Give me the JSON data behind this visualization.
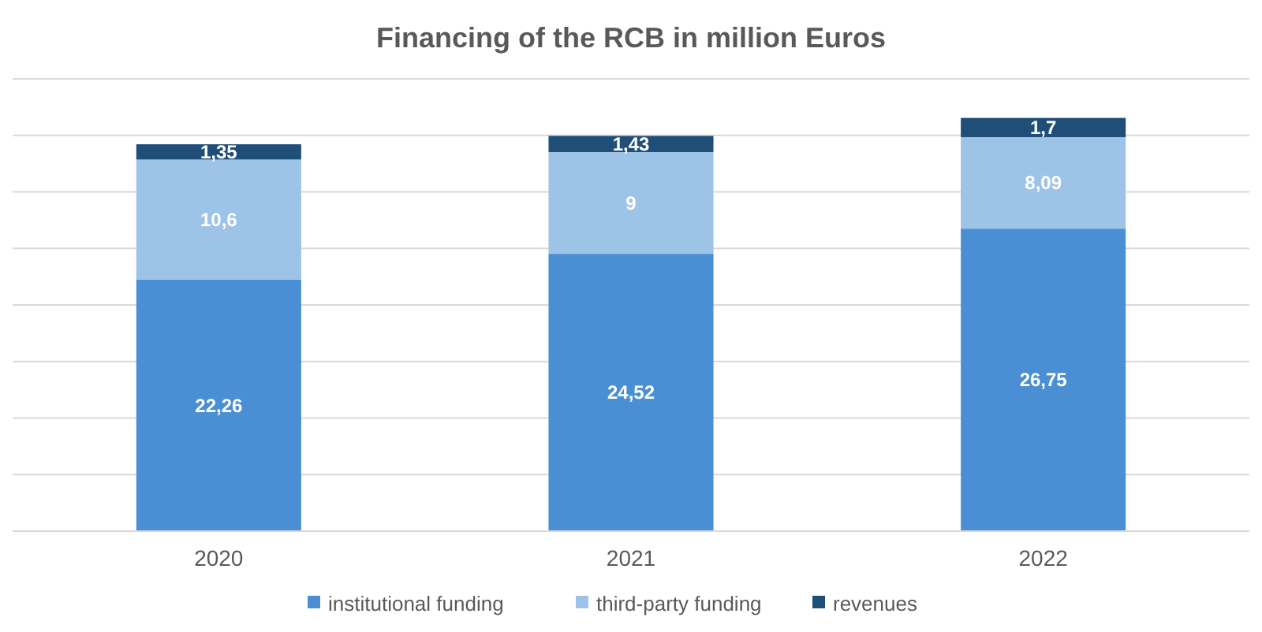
{
  "chart_data": {
    "type": "bar",
    "title": "Financing of the RCB in million Euros",
    "categories": [
      "2020",
      "2021",
      "2022"
    ],
    "stacked": true,
    "series": [
      {
        "name": "institutional funding",
        "color": "#4a8fd4",
        "values": [
          22.26,
          24.52,
          26.75
        ],
        "value_labels": [
          "22,26",
          "24,52",
          "26,75"
        ]
      },
      {
        "name": "third-party funding",
        "color": "#9dc3e6",
        "values": [
          10.6,
          9,
          8.09
        ],
        "value_labels": [
          "10,6",
          "9",
          "8,09"
        ]
      },
      {
        "name": "revenues",
        "color": "#1f4e79",
        "values": [
          1.35,
          1.43,
          1.7
        ],
        "value_labels": [
          "1,35",
          "1,43",
          "1,7"
        ]
      }
    ],
    "ylim": [
      0,
      40
    ],
    "yticks": [
      {
        "value": 0,
        "label": null
      },
      {
        "value": 5,
        "label": null
      },
      {
        "value": 10,
        "label": null
      },
      {
        "value": 15,
        "label": null
      },
      {
        "value": 20,
        "label": null
      },
      {
        "value": 25,
        "label": null
      },
      {
        "value": 30,
        "label": null
      },
      {
        "value": 35,
        "label": null
      },
      {
        "value": 40,
        "label": null
      }
    ],
    "tick_labels": "x",
    "grid": "y",
    "legend": "bottom"
  }
}
